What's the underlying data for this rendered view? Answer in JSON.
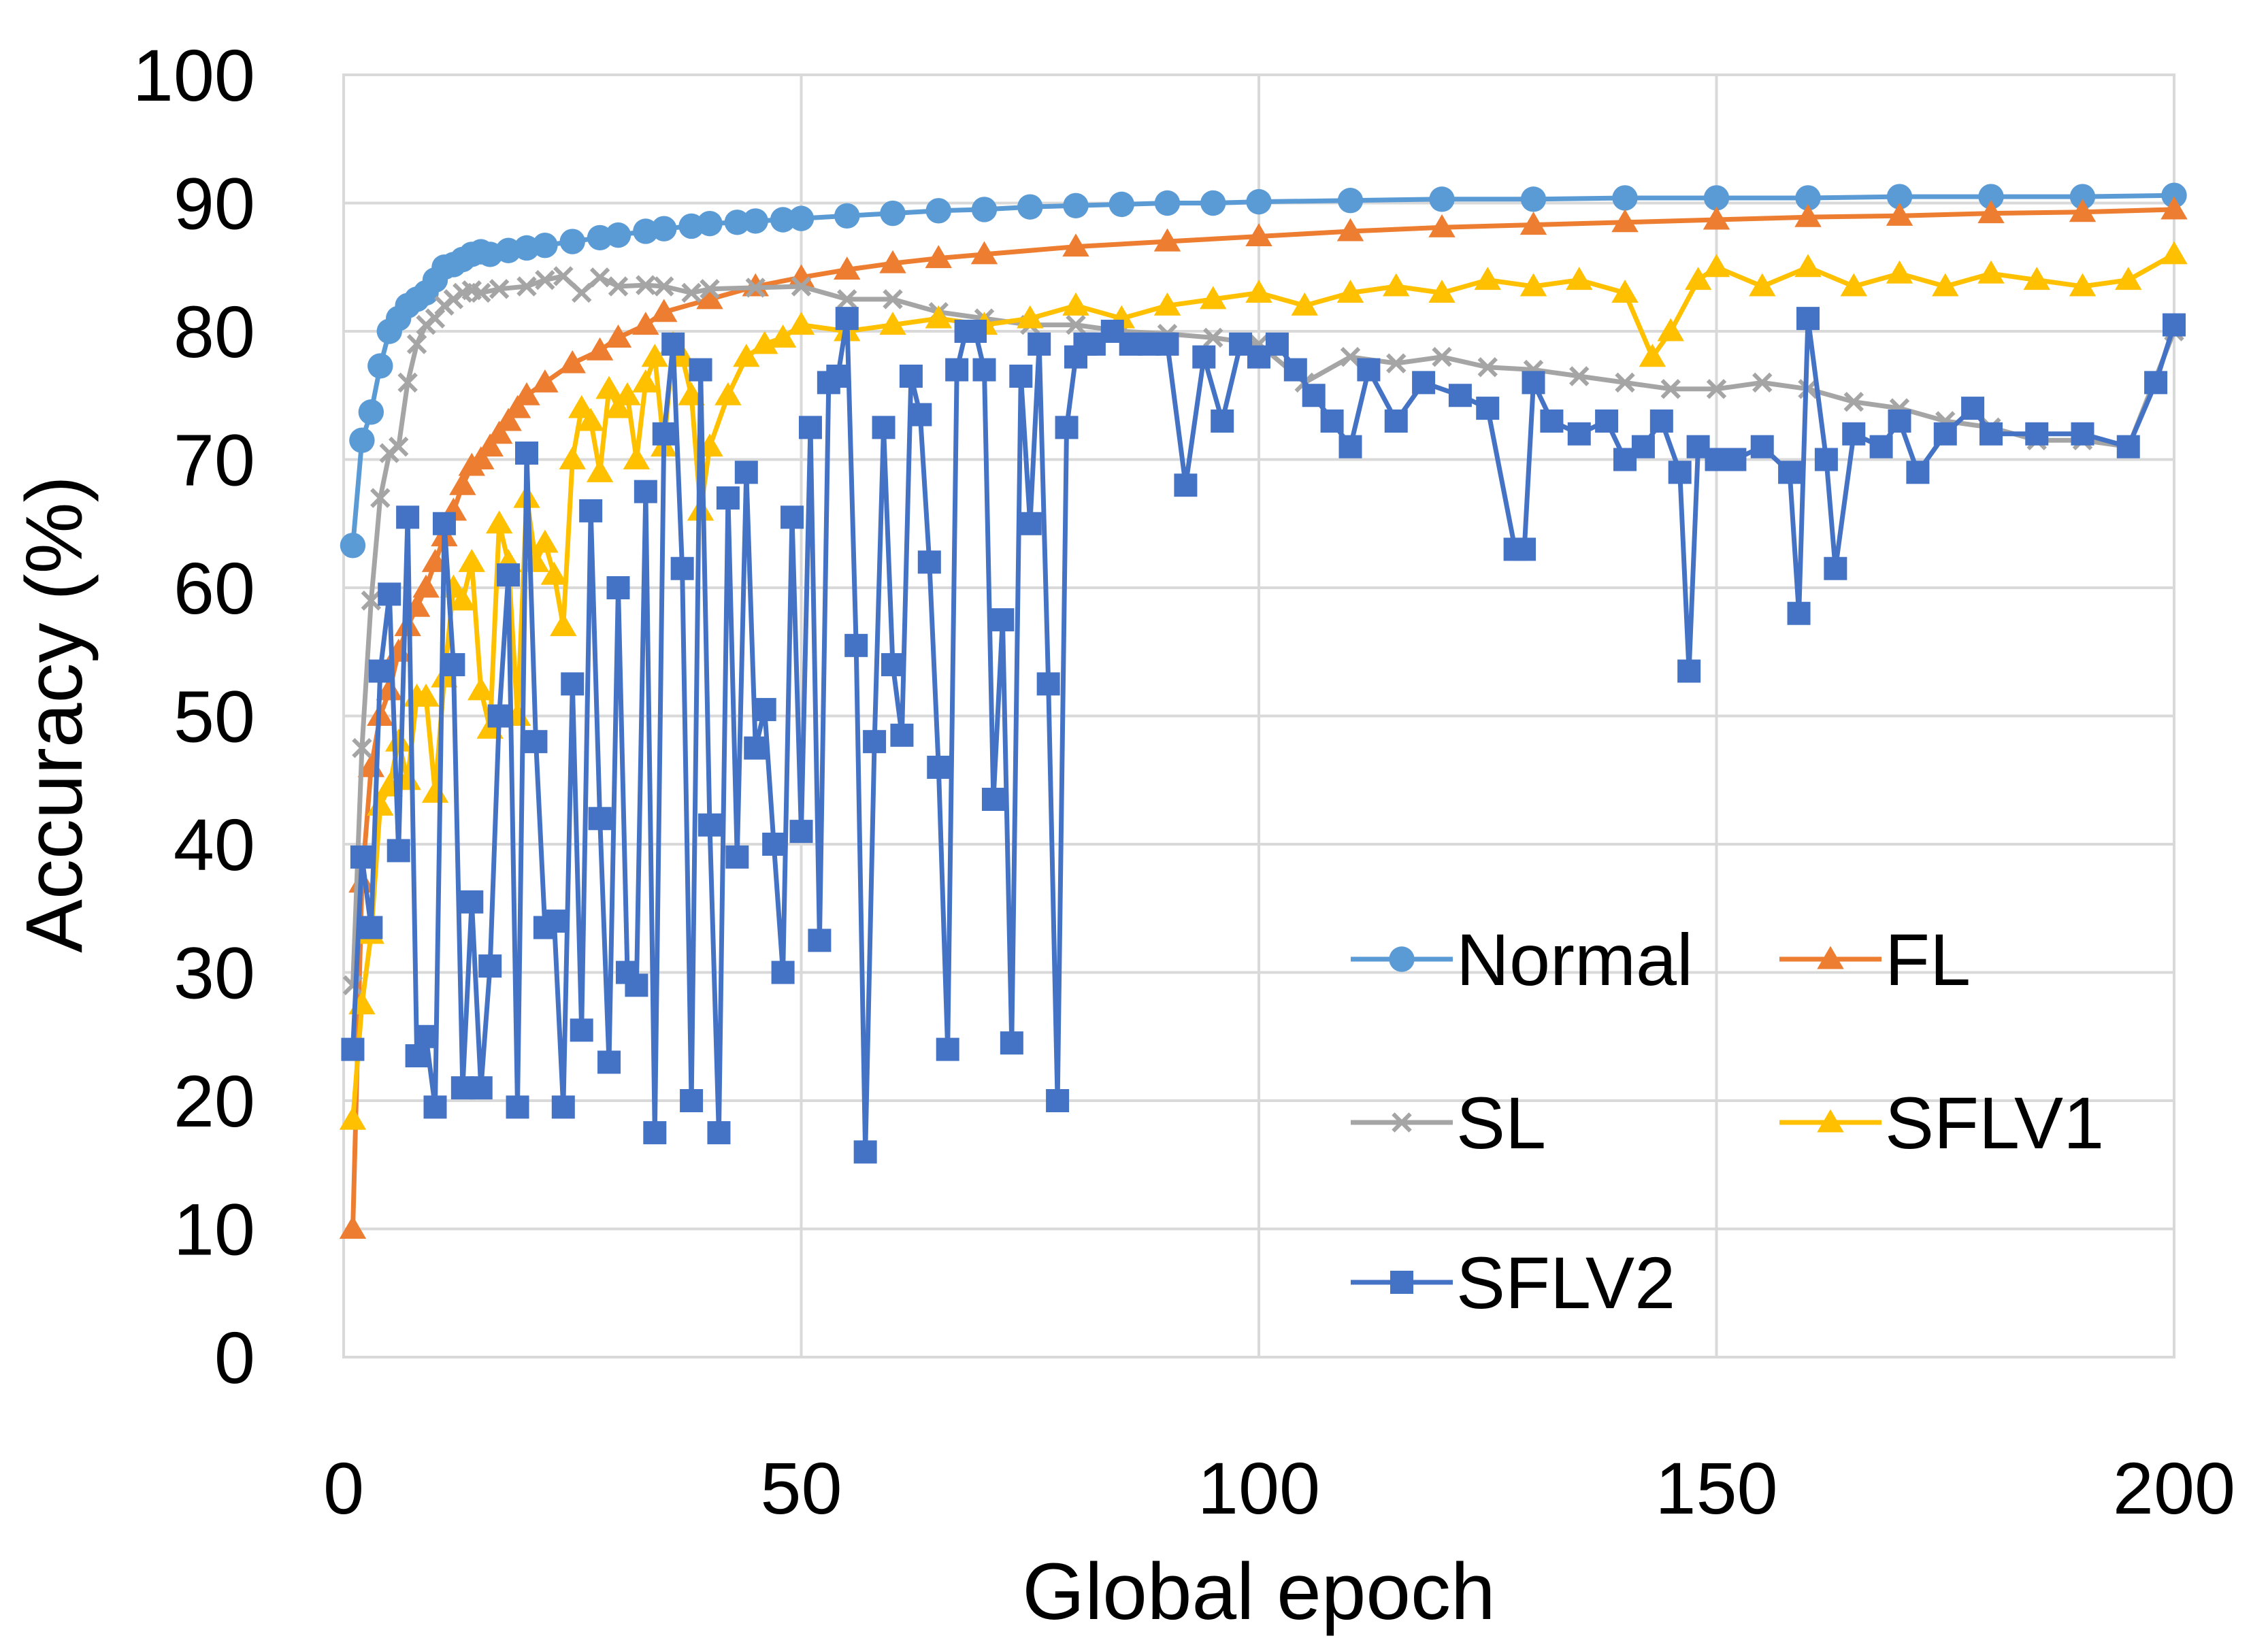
{
  "chart_data": {
    "type": "line",
    "title": "",
    "xlabel": "Global epoch",
    "ylabel": "Accuracy (%)",
    "xlim": [
      0,
      200
    ],
    "ylim": [
      0,
      100
    ],
    "xticks": [
      0,
      50,
      100,
      150,
      200
    ],
    "yticks": [
      0,
      10,
      20,
      30,
      40,
      50,
      60,
      70,
      80,
      90,
      100
    ],
    "grid": true,
    "legend_position": "bottom-right",
    "series": [
      {
        "name": "Normal",
        "color": "#5B9BD5",
        "marker": "circle",
        "x": [
          1,
          2,
          3,
          4,
          5,
          6,
          7,
          8,
          9,
          10,
          11,
          12,
          13,
          14,
          15,
          16,
          18,
          20,
          22,
          25,
          28,
          30,
          33,
          35,
          38,
          40,
          43,
          45,
          48,
          50,
          55,
          60,
          65,
          70,
          75,
          80,
          85,
          90,
          95,
          100,
          110,
          120,
          130,
          140,
          150,
          160,
          170,
          180,
          190,
          200
        ],
        "y": [
          63.3,
          71.5,
          73.7,
          77.3,
          80,
          81,
          82,
          82.5,
          83,
          84,
          85,
          85.2,
          85.6,
          86,
          86.2,
          86,
          86.3,
          86.5,
          86.7,
          87,
          87.3,
          87.5,
          87.8,
          88,
          88.2,
          88.4,
          88.5,
          88.6,
          88.7,
          88.8,
          89,
          89.2,
          89.4,
          89.5,
          89.7,
          89.8,
          89.9,
          90,
          90,
          90.1,
          90.2,
          90.3,
          90.3,
          90.4,
          90.4,
          90.4,
          90.5,
          90.5,
          90.5,
          90.6
        ]
      },
      {
        "name": "FL",
        "color": "#ED7D31",
        "marker": "triangle",
        "x": [
          1,
          2,
          3,
          4,
          5,
          6,
          7,
          8,
          9,
          10,
          11,
          12,
          13,
          14,
          15,
          16,
          17,
          18,
          19,
          20,
          22,
          25,
          28,
          30,
          33,
          35,
          40,
          45,
          50,
          55,
          60,
          65,
          70,
          80,
          90,
          100,
          110,
          120,
          130,
          140,
          150,
          160,
          170,
          180,
          190,
          200
        ],
        "y": [
          10,
          37,
          46,
          50,
          52,
          55,
          57,
          58.5,
          60,
          62,
          64,
          66,
          68,
          69.5,
          70,
          71,
          72,
          73,
          74,
          75,
          76,
          77.5,
          78.5,
          79.5,
          80.5,
          81.5,
          82.5,
          83.5,
          84.2,
          84.8,
          85.3,
          85.7,
          86,
          86.6,
          87,
          87.4,
          87.8,
          88.1,
          88.3,
          88.5,
          88.7,
          88.9,
          89,
          89.2,
          89.3,
          89.5
        ]
      },
      {
        "name": "SL",
        "color": "#A5A5A5",
        "marker": "x",
        "x": [
          1,
          2,
          3,
          4,
          5,
          6,
          7,
          8,
          9,
          10,
          11,
          12,
          13,
          14,
          15,
          17,
          20,
          22,
          24,
          26,
          28,
          30,
          33,
          35,
          38,
          40,
          45,
          50,
          55,
          60,
          65,
          70,
          75,
          80,
          85,
          90,
          95,
          100,
          105,
          110,
          115,
          120,
          125,
          130,
          135,
          140,
          145,
          150,
          155,
          160,
          165,
          170,
          175,
          180,
          185,
          190,
          195,
          200
        ],
        "y": [
          29,
          47.5,
          59,
          67,
          70.5,
          71,
          76,
          79,
          80.5,
          81,
          82,
          82.5,
          83,
          83.2,
          83,
          83.3,
          83.5,
          84,
          84.3,
          83,
          84.2,
          83.5,
          83.6,
          83.5,
          83,
          83.3,
          83.4,
          83.5,
          82.5,
          82.5,
          81.5,
          81,
          80.5,
          80.5,
          80,
          79.8,
          79.5,
          79,
          76,
          78,
          77.5,
          78,
          77.2,
          77,
          76.5,
          76,
          75.5,
          75.5,
          76,
          75.5,
          74.5,
          74,
          73,
          72.5,
          71.5,
          71.5,
          71,
          80
        ]
      },
      {
        "name": "SFLV1",
        "color": "#FFC000",
        "marker": "triangle",
        "x": [
          1,
          2,
          3,
          4,
          5,
          6,
          7,
          8,
          9,
          10,
          11,
          12,
          13,
          14,
          15,
          16,
          17,
          18,
          19,
          20,
          21,
          22,
          23,
          24,
          25,
          26,
          27,
          28,
          29,
          30,
          31,
          32,
          33,
          34,
          35,
          36,
          37,
          38,
          39,
          40,
          42,
          44,
          46,
          48,
          50,
          55,
          60,
          65,
          70,
          75,
          80,
          85,
          90,
          95,
          100,
          105,
          110,
          115,
          120,
          125,
          130,
          135,
          140,
          143,
          145,
          148,
          150,
          155,
          160,
          165,
          170,
          175,
          180,
          185,
          190,
          195,
          200
        ],
        "y": [
          18.5,
          27.5,
          33,
          43,
          44.5,
          48,
          45,
          51.5,
          51.5,
          44,
          53,
          60,
          59,
          62,
          52,
          49,
          65,
          62,
          50,
          67,
          62,
          63.5,
          61,
          57,
          70,
          74,
          73,
          69,
          75.5,
          74,
          75,
          70,
          76,
          78,
          71,
          79,
          78,
          75,
          66,
          71,
          75,
          78,
          79,
          79.5,
          80.5,
          80,
          80.5,
          81,
          80.5,
          81,
          82,
          81,
          82,
          82.5,
          83,
          82,
          83,
          83.5,
          83,
          84,
          83.5,
          84,
          83,
          78,
          80,
          84,
          85,
          83.5,
          85,
          83.5,
          84.5,
          83.5,
          84.5,
          84,
          83.5,
          84,
          86
        ]
      },
      {
        "name": "SFLV2",
        "color": "#4472C4",
        "marker": "square",
        "x": [
          1,
          2,
          3,
          4,
          5,
          6,
          7,
          8,
          9,
          10,
          11,
          12,
          13,
          14,
          15,
          16,
          17,
          18,
          19,
          20,
          21,
          22,
          23,
          24,
          25,
          26,
          27,
          28,
          29,
          30,
          31,
          32,
          33,
          34,
          35,
          36,
          37,
          38,
          39,
          40,
          41,
          42,
          43,
          44,
          45,
          46,
          47,
          48,
          49,
          50,
          51,
          52,
          53,
          54,
          55,
          56,
          57,
          58,
          59,
          60,
          61,
          62,
          63,
          64,
          65,
          66,
          67,
          68,
          69,
          70,
          71,
          72,
          73,
          74,
          75,
          76,
          77,
          78,
          79,
          80,
          81,
          82,
          84,
          86,
          88,
          90,
          92,
          94,
          96,
          98,
          100,
          102,
          104,
          106,
          108,
          110,
          112,
          115,
          118,
          122,
          125,
          128,
          129,
          130,
          132,
          135,
          138,
          140,
          142,
          144,
          146,
          147,
          148,
          150,
          152,
          155,
          158,
          159,
          160,
          162,
          163,
          165,
          168,
          170,
          172,
          175,
          178,
          180,
          185,
          190,
          195,
          198,
          200
        ],
        "y": [
          24,
          39,
          33.5,
          53.5,
          59.5,
          39.5,
          65.5,
          23.5,
          25,
          19.5,
          65,
          54,
          21,
          35.5,
          21,
          30.5,
          50,
          61,
          19.5,
          70.5,
          48,
          33.5,
          34,
          19.5,
          52.5,
          25.5,
          66,
          42,
          23,
          60,
          30,
          29,
          67.5,
          17.5,
          72,
          79,
          61.5,
          20,
          77,
          41.5,
          17.5,
          67,
          39,
          69,
          47.5,
          50.5,
          40,
          30,
          65.5,
          41,
          72.5,
          32.5,
          76,
          76.5,
          81,
          55.5,
          16,
          48,
          72.5,
          54,
          48.5,
          76.5,
          73.5,
          62,
          46,
          24,
          77,
          80,
          80,
          77,
          43.5,
          57.5,
          24.5,
          76.5,
          65,
          79,
          52.5,
          20,
          72.5,
          78,
          79,
          79,
          80,
          79,
          79,
          79,
          68,
          78,
          73,
          79,
          78,
          79,
          77,
          75,
          73,
          71,
          77,
          73,
          76,
          75,
          74,
          63,
          63,
          76,
          73,
          72,
          73,
          70,
          71,
          73,
          69,
          53.5,
          71,
          70,
          70,
          71,
          69,
          58,
          81,
          70,
          61.5,
          72,
          71,
          73,
          69,
          72,
          74,
          72,
          72,
          72,
          71,
          76,
          80.5
        ]
      }
    ]
  }
}
